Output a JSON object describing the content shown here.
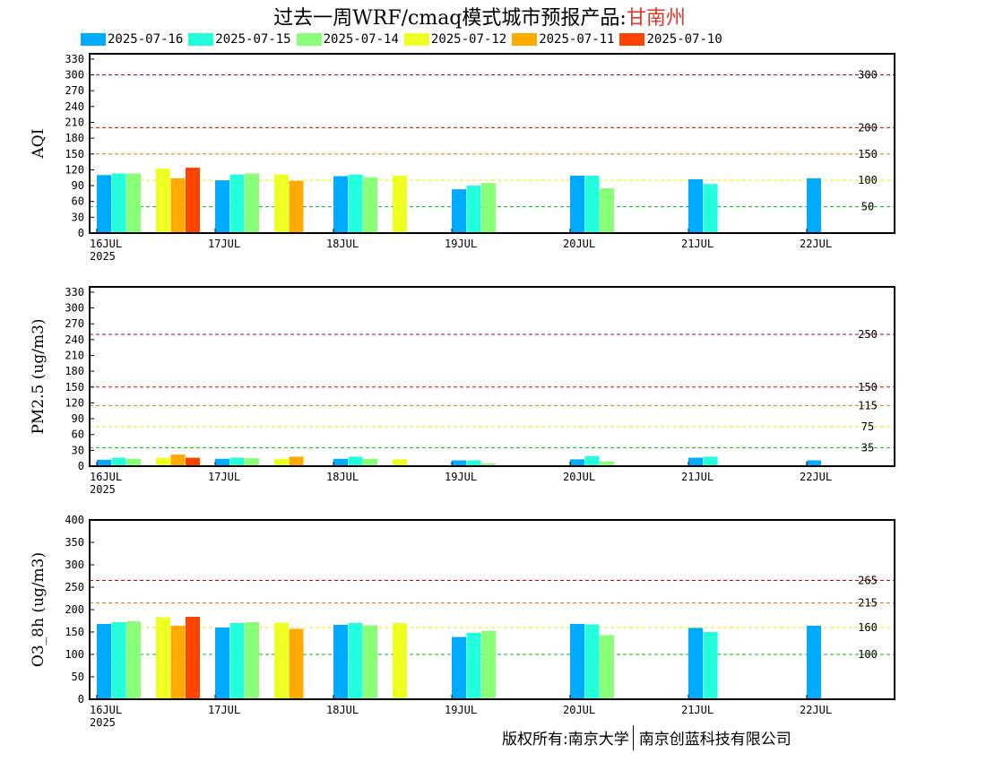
{
  "title": {
    "main": "过去一周WRF/cmaq模式城市预报产品:",
    "city": "甘南州"
  },
  "footer": {
    "left": "版权所有:南京大学",
    "right": "南京创蓝科技有限公司"
  },
  "colors": {
    "2025-07-16": "#00aaff",
    "2025-07-15": "#22ffdd",
    "2025-07-14": "#88ff77",
    "2025-07-12": "#eeff22",
    "2025-07-11": "#ffaa00",
    "2025-07-10": "#ff4400"
  },
  "chart_data": [
    {
      "type": "bar",
      "ylabel": "AQI",
      "ylim": [
        0,
        340
      ],
      "yticks": [
        0,
        30,
        40,
        60,
        80,
        90,
        100,
        120,
        140,
        150,
        160,
        180,
        200,
        210,
        220,
        240,
        250,
        260,
        270,
        280,
        300,
        320,
        330
      ],
      "ytick_labels": [
        "0",
        "30",
        "60",
        "90",
        "120",
        "150",
        "180",
        "210",
        "240",
        "270",
        "300",
        "330"
      ],
      "ytick_vals": [
        0,
        30,
        60,
        90,
        120,
        150,
        180,
        210,
        240,
        270,
        300,
        330
      ],
      "xticks": [
        "16JUL",
        "17JUL",
        "18JUL",
        "19JUL",
        "20JUL",
        "21JUL",
        "22JUL"
      ],
      "xyear": "2025",
      "series_dates": [
        "2025-07-16",
        "2025-07-15",
        "2025-07-14",
        "2025-07-12",
        "2025-07-11",
        "2025-07-10"
      ],
      "thresholds": [
        {
          "value": 300,
          "label": "300",
          "color": "#aa0044"
        },
        {
          "value": 200,
          "label": "200",
          "color": "#dd0000"
        },
        {
          "value": 150,
          "label": "150",
          "color": "#ee7700"
        },
        {
          "value": 100,
          "label": "100",
          "color": "#eeee00"
        },
        {
          "value": 50,
          "label": "50",
          "color": "#00bb00"
        }
      ],
      "bars": [
        {
          "day": 0,
          "slot": 0,
          "series": "2025-07-16",
          "value": 110
        },
        {
          "day": 0,
          "slot": 1,
          "series": "2025-07-15",
          "value": 113
        },
        {
          "day": 0,
          "slot": 2,
          "series": "2025-07-14",
          "value": 113
        },
        {
          "day": 0,
          "slot": 4,
          "series": "2025-07-12",
          "value": 122
        },
        {
          "day": 0,
          "slot": 5,
          "series": "2025-07-11",
          "value": 104
        },
        {
          "day": 0,
          "slot": 6,
          "series": "2025-07-10",
          "value": 124
        },
        {
          "day": 1,
          "slot": 0,
          "series": "2025-07-16",
          "value": 100
        },
        {
          "day": 1,
          "slot": 1,
          "series": "2025-07-15",
          "value": 111
        },
        {
          "day": 1,
          "slot": 2,
          "series": "2025-07-14",
          "value": 113
        },
        {
          "day": 1,
          "slot": 4,
          "series": "2025-07-12",
          "value": 111
        },
        {
          "day": 1,
          "slot": 5,
          "series": "2025-07-11",
          "value": 99
        },
        {
          "day": 2,
          "slot": 0,
          "series": "2025-07-16",
          "value": 108
        },
        {
          "day": 2,
          "slot": 1,
          "series": "2025-07-15",
          "value": 111
        },
        {
          "day": 2,
          "slot": 2,
          "series": "2025-07-14",
          "value": 106
        },
        {
          "day": 2,
          "slot": 4,
          "series": "2025-07-12",
          "value": 109
        },
        {
          "day": 3,
          "slot": 0,
          "series": "2025-07-16",
          "value": 83
        },
        {
          "day": 3,
          "slot": 1,
          "series": "2025-07-15",
          "value": 90
        },
        {
          "day": 3,
          "slot": 2,
          "series": "2025-07-14",
          "value": 95
        },
        {
          "day": 4,
          "slot": 0,
          "series": "2025-07-16",
          "value": 109
        },
        {
          "day": 4,
          "slot": 1,
          "series": "2025-07-15",
          "value": 109
        },
        {
          "day": 4,
          "slot": 2,
          "series": "2025-07-14",
          "value": 85
        },
        {
          "day": 5,
          "slot": 0,
          "series": "2025-07-16",
          "value": 102
        },
        {
          "day": 5,
          "slot": 1,
          "series": "2025-07-15",
          "value": 93
        },
        {
          "day": 6,
          "slot": 0,
          "series": "2025-07-16",
          "value": 104
        }
      ]
    },
    {
      "type": "bar",
      "ylabel": "PM2.5 (ug/m3)",
      "ylim": [
        0,
        340
      ],
      "ytick_labels": [
        "0",
        "30",
        "60",
        "90",
        "120",
        "150",
        "180",
        "210",
        "240",
        "270",
        "300",
        "330"
      ],
      "ytick_vals": [
        0,
        30,
        60,
        90,
        120,
        150,
        180,
        210,
        240,
        270,
        300,
        330
      ],
      "xticks": [
        "16JUL",
        "17JUL",
        "18JUL",
        "19JUL",
        "20JUL",
        "21JUL",
        "22JUL"
      ],
      "xyear": "2025",
      "thresholds": [
        {
          "value": 250,
          "label": "250",
          "color": "#aa0044"
        },
        {
          "value": 150,
          "label": "150",
          "color": "#dd0000"
        },
        {
          "value": 115,
          "label": "115",
          "color": "#ee7700"
        },
        {
          "value": 75,
          "label": "75",
          "color": "#eeee00"
        },
        {
          "value": 35,
          "label": "35",
          "color": "#00bb00"
        }
      ],
      "bars": [
        {
          "day": 0,
          "slot": 0,
          "series": "2025-07-16",
          "value": 12
        },
        {
          "day": 0,
          "slot": 1,
          "series": "2025-07-15",
          "value": 16
        },
        {
          "day": 0,
          "slot": 2,
          "series": "2025-07-14",
          "value": 14
        },
        {
          "day": 0,
          "slot": 4,
          "series": "2025-07-12",
          "value": 16
        },
        {
          "day": 0,
          "slot": 5,
          "series": "2025-07-11",
          "value": 22
        },
        {
          "day": 0,
          "slot": 6,
          "series": "2025-07-10",
          "value": 16
        },
        {
          "day": 1,
          "slot": 0,
          "series": "2025-07-16",
          "value": 14
        },
        {
          "day": 1,
          "slot": 1,
          "series": "2025-07-15",
          "value": 16
        },
        {
          "day": 1,
          "slot": 2,
          "series": "2025-07-14",
          "value": 15
        },
        {
          "day": 1,
          "slot": 4,
          "series": "2025-07-12",
          "value": 14
        },
        {
          "day": 1,
          "slot": 5,
          "series": "2025-07-11",
          "value": 18
        },
        {
          "day": 2,
          "slot": 0,
          "series": "2025-07-16",
          "value": 14
        },
        {
          "day": 2,
          "slot": 1,
          "series": "2025-07-15",
          "value": 18
        },
        {
          "day": 2,
          "slot": 2,
          "series": "2025-07-14",
          "value": 14
        },
        {
          "day": 2,
          "slot": 4,
          "series": "2025-07-12",
          "value": 13
        },
        {
          "day": 3,
          "slot": 0,
          "series": "2025-07-16",
          "value": 11
        },
        {
          "day": 3,
          "slot": 1,
          "series": "2025-07-15",
          "value": 11
        },
        {
          "day": 3,
          "slot": 2,
          "series": "2025-07-14",
          "value": 5
        },
        {
          "day": 4,
          "slot": 0,
          "series": "2025-07-16",
          "value": 13
        },
        {
          "day": 4,
          "slot": 1,
          "series": "2025-07-15",
          "value": 19
        },
        {
          "day": 4,
          "slot": 2,
          "series": "2025-07-14",
          "value": 9
        },
        {
          "day": 5,
          "slot": 0,
          "series": "2025-07-16",
          "value": 16
        },
        {
          "day": 5,
          "slot": 1,
          "series": "2025-07-15",
          "value": 18
        },
        {
          "day": 6,
          "slot": 0,
          "series": "2025-07-16",
          "value": 11
        }
      ]
    },
    {
      "type": "bar",
      "ylabel": "O3_8h (ug/m3)",
      "ylim": [
        0,
        400
      ],
      "ytick_labels": [
        "0",
        "50",
        "100",
        "150",
        "200",
        "250",
        "300",
        "350",
        "400"
      ],
      "ytick_vals": [
        0,
        50,
        100,
        150,
        200,
        250,
        300,
        350,
        400
      ],
      "xticks": [
        "16JUL",
        "17JUL",
        "18JUL",
        "19JUL",
        "20JUL",
        "21JUL",
        "22JUL"
      ],
      "xyear": "2025",
      "thresholds": [
        {
          "value": 265,
          "label": "265",
          "color": "#dd0000"
        },
        {
          "value": 215,
          "label": "215",
          "color": "#ee7700"
        },
        {
          "value": 160,
          "label": "160",
          "color": "#eeee00"
        },
        {
          "value": 100,
          "label": "100",
          "color": "#00bb00"
        }
      ],
      "bars": [
        {
          "day": 0,
          "slot": 0,
          "series": "2025-07-16",
          "value": 168
        },
        {
          "day": 0,
          "slot": 1,
          "series": "2025-07-15",
          "value": 172
        },
        {
          "day": 0,
          "slot": 2,
          "series": "2025-07-14",
          "value": 174
        },
        {
          "day": 0,
          "slot": 4,
          "series": "2025-07-12",
          "value": 183
        },
        {
          "day": 0,
          "slot": 5,
          "series": "2025-07-11",
          "value": 164
        },
        {
          "day": 0,
          "slot": 6,
          "series": "2025-07-10",
          "value": 184
        },
        {
          "day": 1,
          "slot": 0,
          "series": "2025-07-16",
          "value": 160
        },
        {
          "day": 1,
          "slot": 1,
          "series": "2025-07-15",
          "value": 170
        },
        {
          "day": 1,
          "slot": 2,
          "series": "2025-07-14",
          "value": 172
        },
        {
          "day": 1,
          "slot": 4,
          "series": "2025-07-12",
          "value": 171
        },
        {
          "day": 1,
          "slot": 5,
          "series": "2025-07-11",
          "value": 157
        },
        {
          "day": 2,
          "slot": 0,
          "series": "2025-07-16",
          "value": 166
        },
        {
          "day": 2,
          "slot": 1,
          "series": "2025-07-15",
          "value": 170
        },
        {
          "day": 2,
          "slot": 2,
          "series": "2025-07-14",
          "value": 165
        },
        {
          "day": 2,
          "slot": 4,
          "series": "2025-07-12",
          "value": 170
        },
        {
          "day": 3,
          "slot": 0,
          "series": "2025-07-16",
          "value": 139
        },
        {
          "day": 3,
          "slot": 1,
          "series": "2025-07-15",
          "value": 148
        },
        {
          "day": 3,
          "slot": 2,
          "series": "2025-07-14",
          "value": 153
        },
        {
          "day": 4,
          "slot": 0,
          "series": "2025-07-16",
          "value": 168
        },
        {
          "day": 4,
          "slot": 1,
          "series": "2025-07-15",
          "value": 167
        },
        {
          "day": 4,
          "slot": 2,
          "series": "2025-07-14",
          "value": 143
        },
        {
          "day": 5,
          "slot": 0,
          "series": "2025-07-16",
          "value": 159
        },
        {
          "day": 5,
          "slot": 1,
          "series": "2025-07-15",
          "value": 150
        },
        {
          "day": 6,
          "slot": 0,
          "series": "2025-07-16",
          "value": 164
        }
      ]
    }
  ]
}
